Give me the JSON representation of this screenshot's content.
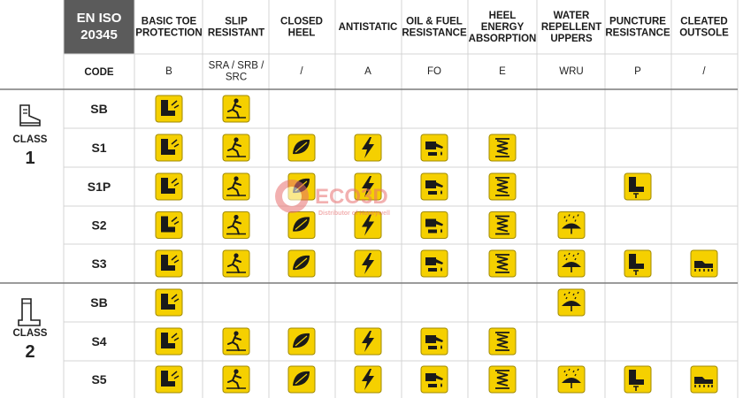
{
  "standard": {
    "line1": "EN ISO",
    "line2": "20345"
  },
  "code_label": "CODE",
  "columns": [
    {
      "id": "B",
      "header": [
        "BASIC TOE",
        "PROTECTION"
      ],
      "code": [
        "B"
      ],
      "icon": "toe-cap-boot-icon"
    },
    {
      "id": "SR",
      "header": [
        "SLIP",
        "RESISTANT"
      ],
      "code": [
        "SRA / SRB /",
        "SRC"
      ],
      "icon": "slip-figure-icon"
    },
    {
      "id": "CH",
      "header": [
        "CLOSED",
        "HEEL"
      ],
      "code": [
        "/"
      ],
      "icon": "closed-heel-icon"
    },
    {
      "id": "A",
      "header": [
        "ANTISTATIC"
      ],
      "code": [
        "A"
      ],
      "icon": "lightning-icon"
    },
    {
      "id": "FO",
      "header": [
        "OIL & FUEL",
        "RESISTANCE"
      ],
      "code": [
        "FO"
      ],
      "icon": "oil-can-icon"
    },
    {
      "id": "E",
      "header": [
        "HEEL",
        "ENERGY",
        "ABSORPTION"
      ],
      "code": [
        "E"
      ],
      "icon": "spring-icon"
    },
    {
      "id": "WRU",
      "header": [
        "WATER",
        "REPELLENT",
        "UPPERS"
      ],
      "code": [
        "WRU"
      ],
      "icon": "umbrella-rain-icon"
    },
    {
      "id": "P",
      "header": [
        "PUNCTURE",
        "RESISTANCE"
      ],
      "code": [
        "P"
      ],
      "icon": "nail-boot-icon"
    },
    {
      "id": "CO",
      "header": [
        "CLEATED",
        "OUTSOLE"
      ],
      "code": [
        "/"
      ],
      "icon": "cleated-shoe-icon"
    }
  ],
  "classes": [
    {
      "label": "CLASS",
      "number": "1",
      "icon": "hiking-boot-icon",
      "rows": [
        {
          "name": "SB",
          "features": [
            1,
            1,
            0,
            0,
            0,
            0,
            0,
            0,
            0
          ]
        },
        {
          "name": "S1",
          "features": [
            1,
            1,
            1,
            1,
            1,
            1,
            0,
            0,
            0
          ]
        },
        {
          "name": "S1P",
          "features": [
            1,
            1,
            1,
            1,
            1,
            1,
            0,
            1,
            0
          ]
        },
        {
          "name": "S2",
          "features": [
            1,
            1,
            1,
            1,
            1,
            1,
            1,
            0,
            0
          ]
        },
        {
          "name": "S3",
          "features": [
            1,
            1,
            1,
            1,
            1,
            1,
            1,
            1,
            1
          ]
        }
      ]
    },
    {
      "label": "CLASS",
      "number": "2",
      "icon": "rubber-boot-icon",
      "rows": [
        {
          "name": "SB",
          "features": [
            1,
            0,
            0,
            0,
            0,
            0,
            1,
            0,
            0
          ]
        },
        {
          "name": "S4",
          "features": [
            1,
            1,
            1,
            1,
            1,
            1,
            0,
            0,
            0
          ]
        },
        {
          "name": "S5",
          "features": [
            1,
            1,
            1,
            1,
            1,
            1,
            1,
            1,
            1
          ]
        }
      ]
    }
  ],
  "watermark": {
    "brand": "ECO3D",
    "sub": "Distributor of Honeywell"
  },
  "colors": {
    "badge": "#f5d000",
    "badge_border": "#a08a00",
    "iso_bg": "#5b5b5b",
    "grid": "#d4d4d4",
    "divider": "#7a7a7a",
    "watermark": "#e87070"
  }
}
